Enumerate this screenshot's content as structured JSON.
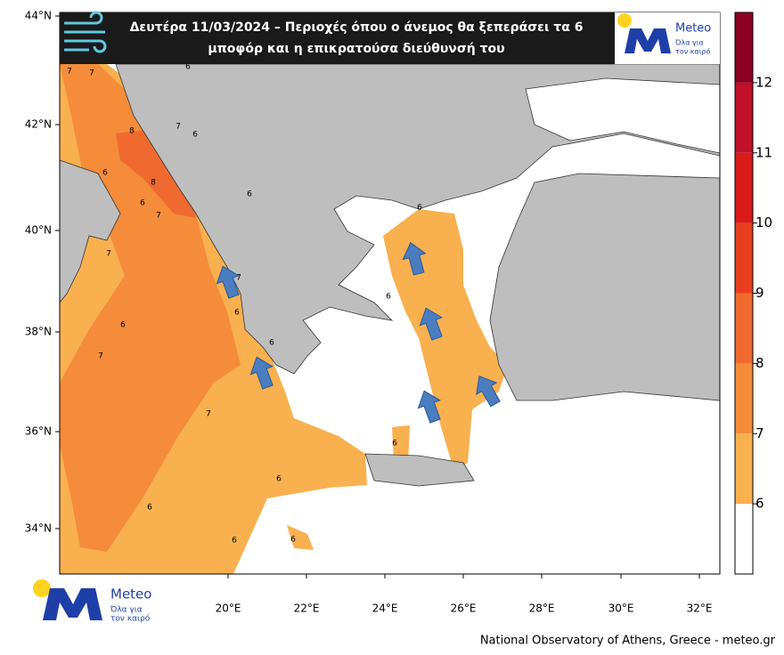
{
  "header": {
    "title_lines": [
      "Δευτέρα 11/03/2024 – Περιοχές όπου ο άνεμος θα ξεπεράσει τα 6",
      "μποφόρ και η επικρατούσα διεύθυνσή του"
    ]
  },
  "logo_top": {
    "name": "Meteo",
    "tagline_lines": [
      "Όλα για",
      "τον καιρό"
    ]
  },
  "logo_bottom": {
    "name": "Meteo",
    "tagline_lines": [
      "Όλα για",
      "τον καιρό"
    ]
  },
  "map": {
    "lat_ticks": [
      "44°N",
      "42°N",
      "40°N",
      "38°N",
      "36°N",
      "34°N"
    ],
    "lon_ticks": [
      "20°E",
      "22°E",
      "24°E",
      "26°E",
      "28°E",
      "30°E",
      "32°E"
    ],
    "contour_labels": [
      7,
      7,
      6,
      6,
      8,
      7,
      6,
      8,
      6,
      7,
      6,
      7,
      7,
      6,
      7,
      6,
      6,
      6,
      6,
      7,
      6,
      6,
      6,
      6,
      6,
      6
    ]
  },
  "colorbar": {
    "levels": [
      6,
      7,
      8,
      9,
      10,
      11,
      12
    ],
    "colors": [
      "#ffffff",
      "#f9b04f",
      "#f48c3a",
      "#f06a30",
      "#e8401f",
      "#d81a1a",
      "#c0102a",
      "#8b0022"
    ]
  },
  "footer": "National Observatory of Athens, Greece - meteo.gr"
}
